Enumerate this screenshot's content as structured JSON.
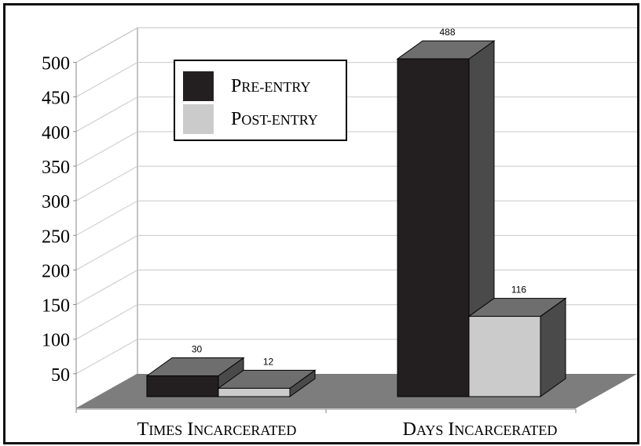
{
  "chart_data": {
    "type": "bar",
    "style": "3d-clustered",
    "categories": [
      "Times Incarcerated",
      "Days Incarcerated"
    ],
    "series": [
      {
        "name": "Pre-entry",
        "values": [
          30,
          488
        ],
        "color": "#231f20"
      },
      {
        "name": "Post-entry",
        "values": [
          12,
          116
        ],
        "color": "#cbcbcb"
      }
    ],
    "yticks": [
      50,
      100,
      150,
      200,
      250,
      300,
      350,
      400,
      450,
      500
    ],
    "ylim": [
      0,
      500
    ],
    "grid": true,
    "legend_position": "top-left",
    "title": "",
    "xlabel": "",
    "ylabel": "",
    "floor_color": "#7d7d7d",
    "side_color": "#4a4a4a",
    "top_color": "#6e6e6e"
  }
}
